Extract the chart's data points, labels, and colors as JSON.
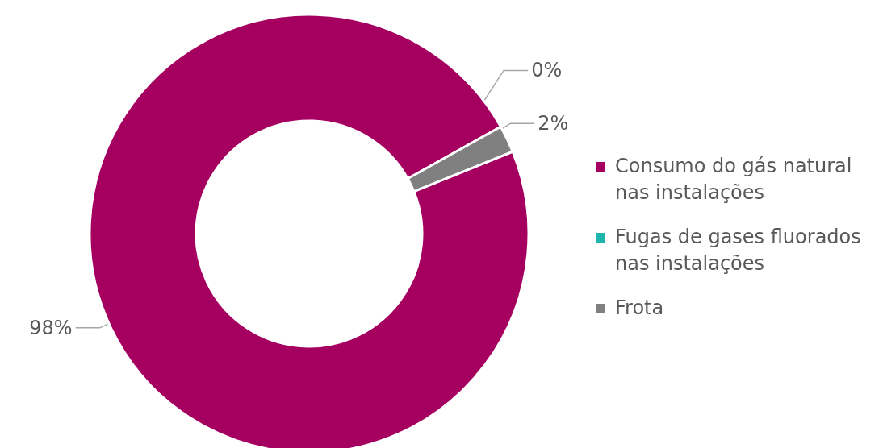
{
  "chart_data": {
    "type": "donut",
    "categories": [
      "Consumo do gás natural nas instalações",
      "Fugas de gases fluorados nas instalações",
      "Frota"
    ],
    "values": [
      98,
      0,
      2
    ],
    "colors": [
      "#a50060",
      "#1fb5ad",
      "#808080"
    ],
    "value_labels": [
      "98%",
      "0%",
      "2%"
    ],
    "legend": "right"
  }
}
